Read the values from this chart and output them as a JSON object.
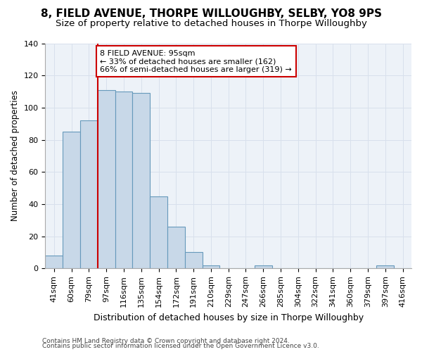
{
  "title": "8, FIELD AVENUE, THORPE WILLOUGHBY, SELBY, YO8 9PS",
  "subtitle": "Size of property relative to detached houses in Thorpe Willoughby",
  "xlabel": "Distribution of detached houses by size in Thorpe Willoughby",
  "ylabel": "Number of detached properties",
  "bins": [
    "41sqm",
    "60sqm",
    "79sqm",
    "97sqm",
    "116sqm",
    "135sqm",
    "154sqm",
    "172sqm",
    "191sqm",
    "210sqm",
    "229sqm",
    "247sqm",
    "266sqm",
    "285sqm",
    "304sqm",
    "322sqm",
    "341sqm",
    "360sqm",
    "379sqm",
    "397sqm",
    "416sqm"
  ],
  "bar_heights": [
    8,
    85,
    92,
    111,
    110,
    109,
    45,
    26,
    10,
    2,
    0,
    0,
    2,
    0,
    0,
    0,
    0,
    0,
    0,
    2,
    0
  ],
  "bar_color": "#c8d8e8",
  "bar_edge_color": "#6699bb",
  "vline_color": "#cc0000",
  "vline_x_index": 3,
  "annotation_line1": "8 FIELD AVENUE: 95sqm",
  "annotation_line2": "← 33% of detached houses are smaller (162)",
  "annotation_line3": "66% of semi-detached houses are larger (319) →",
  "annotation_box_facecolor": "#ffffff",
  "annotation_box_edgecolor": "#cc0000",
  "ylim": [
    0,
    140
  ],
  "yticks": [
    0,
    20,
    40,
    60,
    80,
    100,
    120,
    140
  ],
  "grid_color": "#d8e0ec",
  "bg_color": "#edf2f8",
  "footer1": "Contains HM Land Registry data © Crown copyright and database right 2024.",
  "footer2": "Contains public sector information licensed under the Open Government Licence v3.0.",
  "title_fontsize": 11,
  "subtitle_fontsize": 9.5,
  "xlabel_fontsize": 9,
  "ylabel_fontsize": 8.5,
  "tick_fontsize": 8,
  "annotation_fontsize": 8,
  "footer_fontsize": 6.5
}
